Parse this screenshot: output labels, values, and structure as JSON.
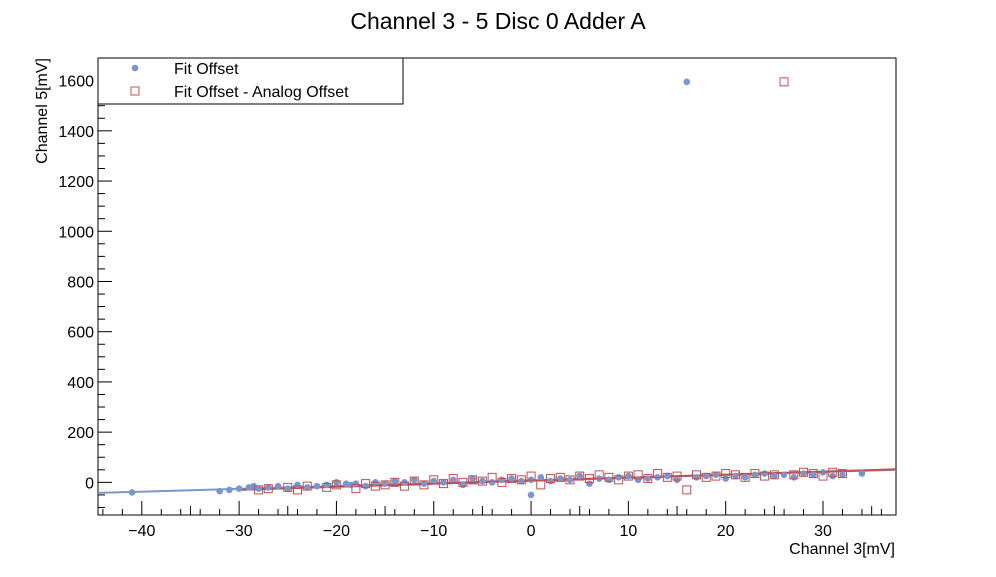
{
  "chart_data": {
    "type": "scatter",
    "title": "Channel 3 - 5 Disc 0 Adder A",
    "xlabel": "Channel 3[mV]",
    "ylabel": "Channel 5[mV]",
    "xlim": [
      -44.5,
      37.5
    ],
    "ylim": [
      -130,
      1690
    ],
    "x_ticks": [
      -40,
      -30,
      -20,
      -10,
      0,
      10,
      20,
      30
    ],
    "y_ticks": [
      0,
      200,
      400,
      600,
      800,
      1000,
      1200,
      1400,
      1600
    ],
    "x_tick_labels": [
      "−40",
      "−30",
      "−20",
      "−10",
      "0",
      "10",
      "20",
      "30"
    ],
    "y_tick_labels": [
      "0",
      "200",
      "400",
      "600",
      "800",
      "1000",
      "1200",
      "1400",
      "1600"
    ],
    "grid": false,
    "legend_position": "top-left",
    "series": [
      {
        "name": "Fit Offset",
        "marker": "filled-circle",
        "color": "#7a96cf",
        "x": [
          -41,
          -32,
          -31,
          -30,
          -29,
          -28.5,
          -28,
          -27,
          -26,
          -25,
          -24,
          -23,
          -22,
          -21,
          -20,
          -19,
          -18.5,
          -18,
          -17,
          -16,
          -15,
          -14,
          -13,
          -12,
          -11,
          -10,
          -9,
          -8,
          -7,
          -6,
          -5,
          -4,
          -3,
          -2,
          -1,
          0,
          0,
          1,
          2,
          3,
          4,
          5,
          6,
          7,
          8,
          9,
          10,
          11,
          12,
          13,
          14,
          15,
          16,
          17,
          18,
          19,
          20,
          21,
          22,
          23,
          24,
          25,
          26,
          27,
          28,
          29,
          30,
          31,
          32,
          34
        ],
        "y": [
          -40,
          -35,
          -30,
          -25,
          -20,
          -15,
          -25,
          -20,
          -15,
          -25,
          -10,
          -20,
          -15,
          -10,
          0,
          -5,
          -10,
          -5,
          -15,
          0,
          -5,
          5,
          0,
          10,
          -5,
          5,
          0,
          10,
          -10,
          15,
          5,
          0,
          10,
          15,
          5,
          -50,
          10,
          20,
          5,
          15,
          10,
          25,
          -5,
          15,
          10,
          20,
          25,
          10,
          15,
          20,
          25,
          10,
          1595,
          20,
          25,
          30,
          15,
          25,
          20,
          30,
          35,
          25,
          30,
          20,
          35,
          30,
          40,
          25,
          30,
          35
        ]
      },
      {
        "name": "Fit Offset - Analog Offset",
        "marker": "open-square",
        "color": "#c0504d",
        "x": [
          -28,
          -27,
          -25,
          -24,
          -23,
          -21,
          -20,
          -18,
          -17,
          -16,
          -15,
          -14,
          -13,
          -12,
          -11,
          -10,
          -9,
          -8,
          -7,
          -6,
          -5,
          -4,
          -3,
          -2,
          -1,
          0,
          1,
          2,
          3,
          4,
          5,
          6,
          7,
          8,
          9,
          10,
          11,
          12,
          13,
          14,
          15,
          16,
          17,
          18,
          19,
          20,
          21,
          22,
          23,
          24,
          25,
          26,
          27,
          28,
          29,
          30,
          31,
          32
        ],
        "y": [
          -30,
          -25,
          -20,
          -30,
          -15,
          -20,
          -10,
          -25,
          -5,
          -15,
          -10,
          0,
          -15,
          5,
          -10,
          10,
          -5,
          15,
          0,
          10,
          5,
          20,
          0,
          15,
          10,
          25,
          -10,
          15,
          20,
          10,
          25,
          15,
          30,
          20,
          10,
          25,
          30,
          15,
          35,
          20,
          25,
          -30,
          30,
          20,
          25,
          35,
          30,
          20,
          35,
          25,
          30,
          1595,
          30,
          40,
          35,
          25,
          40,
          35
        ]
      }
    ],
    "fit_lines": [
      {
        "series": "Fit Offset",
        "color": "#7a96cf",
        "x": [
          -44.5,
          37.5
        ],
        "y": [
          -42,
          50
        ]
      },
      {
        "series": "Fit Offset - Analog Offset",
        "color": "#c0504d",
        "x": [
          -30,
          37.5
        ],
        "y": [
          -30,
          52
        ]
      }
    ]
  }
}
